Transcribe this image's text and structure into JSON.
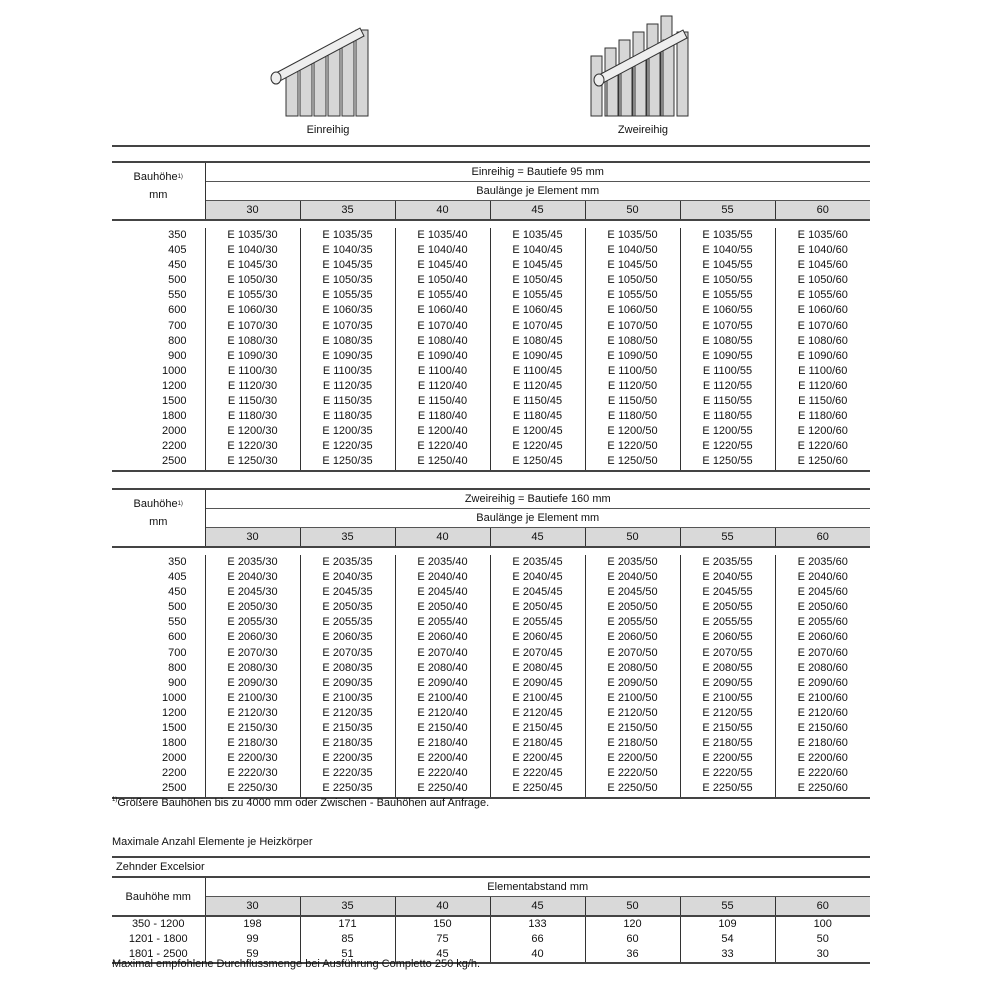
{
  "illustrations": [
    {
      "label": "Einreihig"
    },
    {
      "label": "Zweireihig"
    }
  ],
  "footnote_mark": "1)",
  "table1": {
    "row_header": "Bauhöhe",
    "row_header_unit": "mm",
    "title": "Einreihig = Bautiefe 95 mm",
    "subtitle": "Baulänge je Element mm",
    "columns": [
      "30",
      "35",
      "40",
      "45",
      "50",
      "55",
      "60"
    ],
    "rows": [
      {
        "h": "350",
        "cells": [
          "E 1035/30",
          "E 1035/35",
          "E 1035/40",
          "E 1035/45",
          "E 1035/50",
          "E 1035/55",
          "E 1035/60"
        ]
      },
      {
        "h": "405",
        "cells": [
          "E 1040/30",
          "E 1040/35",
          "E 1040/40",
          "E 1040/45",
          "E 1040/50",
          "E 1040/55",
          "E 1040/60"
        ]
      },
      {
        "h": "450",
        "cells": [
          "E 1045/30",
          "E 1045/35",
          "E 1045/40",
          "E 1045/45",
          "E 1045/50",
          "E 1045/55",
          "E 1045/60"
        ]
      },
      {
        "h": "500",
        "cells": [
          "E 1050/30",
          "E 1050/35",
          "E 1050/40",
          "E 1050/45",
          "E 1050/50",
          "E 1050/55",
          "E 1050/60"
        ]
      },
      {
        "h": "550",
        "cells": [
          "E 1055/30",
          "E 1055/35",
          "E 1055/40",
          "E 1055/45",
          "E 1055/50",
          "E 1055/55",
          "E 1055/60"
        ]
      },
      {
        "h": "600",
        "cells": [
          "E 1060/30",
          "E 1060/35",
          "E 1060/40",
          "E 1060/45",
          "E 1060/50",
          "E 1060/55",
          "E 1060/60"
        ]
      },
      {
        "h": "700",
        "cells": [
          "E 1070/30",
          "E 1070/35",
          "E 1070/40",
          "E 1070/45",
          "E 1070/50",
          "E 1070/55",
          "E 1070/60"
        ]
      },
      {
        "h": "800",
        "cells": [
          "E 1080/30",
          "E 1080/35",
          "E 1080/40",
          "E 1080/45",
          "E 1080/50",
          "E 1080/55",
          "E 1080/60"
        ]
      },
      {
        "h": "900",
        "cells": [
          "E 1090/30",
          "E 1090/35",
          "E 1090/40",
          "E 1090/45",
          "E 1090/50",
          "E 1090/55",
          "E 1090/60"
        ]
      },
      {
        "h": "1000",
        "cells": [
          "E 1100/30",
          "E 1100/35",
          "E 1100/40",
          "E 1100/45",
          "E 1100/50",
          "E 1100/55",
          "E 1100/60"
        ]
      },
      {
        "h": "1200",
        "cells": [
          "E 1120/30",
          "E 1120/35",
          "E 1120/40",
          "E 1120/45",
          "E 1120/50",
          "E 1120/55",
          "E 1120/60"
        ]
      },
      {
        "h": "1500",
        "cells": [
          "E 1150/30",
          "E 1150/35",
          "E 1150/40",
          "E 1150/45",
          "E 1150/50",
          "E 1150/55",
          "E 1150/60"
        ]
      },
      {
        "h": "1800",
        "cells": [
          "E 1180/30",
          "E 1180/35",
          "E 1180/40",
          "E 1180/45",
          "E 1180/50",
          "E 1180/55",
          "E 1180/60"
        ]
      },
      {
        "h": "2000",
        "cells": [
          "E 1200/30",
          "E 1200/35",
          "E 1200/40",
          "E 1200/45",
          "E 1200/50",
          "E 1200/55",
          "E 1200/60"
        ]
      },
      {
        "h": "2200",
        "cells": [
          "E 1220/30",
          "E 1220/35",
          "E 1220/40",
          "E 1220/45",
          "E 1220/50",
          "E 1220/55",
          "E 1220/60"
        ]
      },
      {
        "h": "2500",
        "cells": [
          "E 1250/30",
          "E 1250/35",
          "E 1250/40",
          "E 1250/45",
          "E 1250/50",
          "E 1250/55",
          "E 1250/60"
        ]
      }
    ]
  },
  "table2": {
    "row_header": "Bauhöhe",
    "row_header_unit": "mm",
    "title": "Zweireihig = Bautiefe 160 mm",
    "subtitle": "Baulänge je Element mm",
    "columns": [
      "30",
      "35",
      "40",
      "45",
      "50",
      "55",
      "60"
    ],
    "rows": [
      {
        "h": "350",
        "cells": [
          "E 2035/30",
          "E 2035/35",
          "E 2035/40",
          "E 2035/45",
          "E 2035/50",
          "E 2035/55",
          "E 2035/60"
        ]
      },
      {
        "h": "405",
        "cells": [
          "E 2040/30",
          "E 2040/35",
          "E 2040/40",
          "E 2040/45",
          "E 2040/50",
          "E 2040/55",
          "E 2040/60"
        ]
      },
      {
        "h": "450",
        "cells": [
          "E 2045/30",
          "E 2045/35",
          "E 2045/40",
          "E 2045/45",
          "E 2045/50",
          "E 2045/55",
          "E 2045/60"
        ]
      },
      {
        "h": "500",
        "cells": [
          "E 2050/30",
          "E 2050/35",
          "E 2050/40",
          "E 2050/45",
          "E 2050/50",
          "E 2050/55",
          "E 2050/60"
        ]
      },
      {
        "h": "550",
        "cells": [
          "E 2055/30",
          "E 2055/35",
          "E 2055/40",
          "E 2055/45",
          "E 2055/50",
          "E 2055/55",
          "E 2055/60"
        ]
      },
      {
        "h": "600",
        "cells": [
          "E 2060/30",
          "E 2060/35",
          "E 2060/40",
          "E 2060/45",
          "E 2060/50",
          "E 2060/55",
          "E 2060/60"
        ]
      },
      {
        "h": "700",
        "cells": [
          "E 2070/30",
          "E 2070/35",
          "E 2070/40",
          "E 2070/45",
          "E 2070/50",
          "E 2070/55",
          "E 2070/60"
        ]
      },
      {
        "h": "800",
        "cells": [
          "E 2080/30",
          "E 2080/35",
          "E 2080/40",
          "E 2080/45",
          "E 2080/50",
          "E 2080/55",
          "E 2080/60"
        ]
      },
      {
        "h": "900",
        "cells": [
          "E 2090/30",
          "E 2090/35",
          "E 2090/40",
          "E 2090/45",
          "E 2090/50",
          "E 2090/55",
          "E 2090/60"
        ]
      },
      {
        "h": "1000",
        "cells": [
          "E 2100/30",
          "E 2100/35",
          "E 2100/40",
          "E 2100/45",
          "E 2100/50",
          "E 2100/55",
          "E 2100/60"
        ]
      },
      {
        "h": "1200",
        "cells": [
          "E 2120/30",
          "E 2120/35",
          "E 2120/40",
          "E 2120/45",
          "E 2120/50",
          "E 2120/55",
          "E 2120/60"
        ]
      },
      {
        "h": "1500",
        "cells": [
          "E 2150/30",
          "E 2150/35",
          "E 2150/40",
          "E 2150/45",
          "E 2150/50",
          "E 2150/55",
          "E 2150/60"
        ]
      },
      {
        "h": "1800",
        "cells": [
          "E 2180/30",
          "E 2180/35",
          "E 2180/40",
          "E 2180/45",
          "E 2180/50",
          "E 2180/55",
          "E 2180/60"
        ]
      },
      {
        "h": "2000",
        "cells": [
          "E 2200/30",
          "E 2200/35",
          "E 2200/40",
          "E 2200/45",
          "E 2200/50",
          "E 2200/55",
          "E 2200/60"
        ]
      },
      {
        "h": "2200",
        "cells": [
          "E 2220/30",
          "E 2220/35",
          "E 2220/40",
          "E 2220/45",
          "E 2220/50",
          "E 2220/55",
          "E 2220/60"
        ]
      },
      {
        "h": "2500",
        "cells": [
          "E 2250/30",
          "E 2250/35",
          "E 2250/40",
          "E 2250/45",
          "E 2250/50",
          "E 2250/55",
          "E 2250/60"
        ]
      }
    ]
  },
  "footnote": "Größere Bauhöhen bis zu 4000 mm oder Zwischen - Bauhöhen auf Anfrage.",
  "table3": {
    "heading": "Maximale Anzahl Elemente je Heizkörper",
    "product": "Zehnder Excelsior",
    "row_header": "Bauhöhe mm",
    "title": "Elementabstand mm",
    "columns": [
      "30",
      "35",
      "40",
      "45",
      "50",
      "55",
      "60"
    ],
    "rows": [
      {
        "h": "350 - 1200",
        "cells": [
          "198",
          "171",
          "150",
          "133",
          "120",
          "109",
          "100"
        ]
      },
      {
        "h": "1201 - 1800",
        "cells": [
          "99",
          "85",
          "75",
          "66",
          "60",
          "54",
          "50"
        ]
      },
      {
        "h": "1801 - 2500",
        "cells": [
          "59",
          "51",
          "45",
          "40",
          "36",
          "33",
          "30"
        ]
      }
    ],
    "note": "Maximal empfohlene Durchflussmenge bei Ausführung Completto 250 kg/h."
  }
}
